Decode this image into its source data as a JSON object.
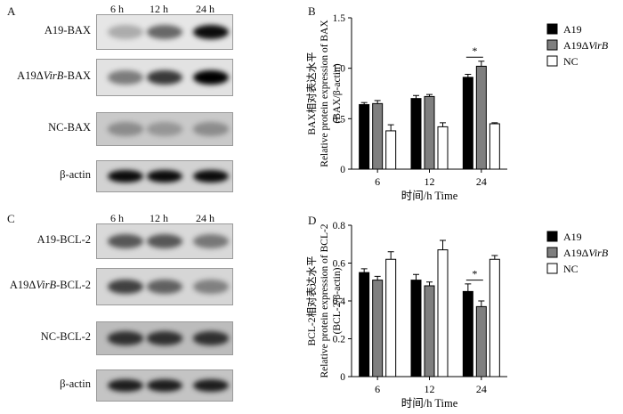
{
  "panels": {
    "A": {
      "letter": "A",
      "time_labels": [
        "6 h",
        "12 h",
        "24 h"
      ],
      "rows": [
        {
          "prefix": "A19-BAX",
          "italic": "",
          "suffix": "",
          "intensity": [
            0.25,
            0.55,
            0.95
          ],
          "bg": "#e6e6e6"
        },
        {
          "prefix": "A19Δ",
          "italic": "VirB",
          "suffix": "-BAX",
          "intensity": [
            0.45,
            0.75,
            1.0
          ],
          "bg": "#e2e2e2"
        },
        {
          "prefix": "NC-BAX",
          "italic": "",
          "suffix": "",
          "intensity": [
            0.3,
            0.25,
            0.3
          ],
          "bg": "#c9c9c9"
        },
        {
          "prefix": "β-actin",
          "italic": "",
          "suffix": "",
          "intensity": [
            0.95,
            0.95,
            0.95
          ],
          "bg": "#d2d2d2"
        }
      ]
    },
    "C": {
      "letter": "C",
      "time_labels": [
        "6 h",
        "12 h",
        "24 h"
      ],
      "rows": [
        {
          "prefix": "A19-BCL-2",
          "italic": "",
          "suffix": "",
          "intensity": [
            0.6,
            0.6,
            0.45
          ],
          "bg": "#d9d9d9"
        },
        {
          "prefix": "A19Δ",
          "italic": "VirB",
          "suffix": "-BCL-2",
          "intensity": [
            0.7,
            0.55,
            0.4
          ],
          "bg": "#d6d6d6"
        },
        {
          "prefix": "NC-BCL-2",
          "italic": "",
          "suffix": "",
          "intensity": [
            0.75,
            0.75,
            0.75
          ],
          "bg": "#bcbcbc"
        },
        {
          "prefix": "β-actin",
          "italic": "",
          "suffix": "",
          "intensity": [
            0.85,
            0.85,
            0.85
          ],
          "bg": "#c4c4c4"
        }
      ]
    },
    "B": {
      "letter": "B"
    },
    "D": {
      "letter": "D"
    }
  },
  "chart_data": [
    {
      "panel": "B",
      "type": "bar",
      "categories": [
        "6",
        "12",
        "24"
      ],
      "xlabel": "时间/h  Time",
      "ylabel_lines": [
        "BAX相对表达水平",
        "Relative protein expression of BAX",
        "(BAX/β-actin)"
      ],
      "ylim": [
        0,
        1.5
      ],
      "yticks": [
        "0",
        "0.5",
        "1.0",
        "1.5"
      ],
      "grid": false,
      "legend_position": "right",
      "series": [
        {
          "name": "A19",
          "values": [
            0.64,
            0.7,
            0.91
          ],
          "errors": [
            0.02,
            0.03,
            0.03
          ],
          "color": "#000000"
        },
        {
          "name": "A19ΔVirB",
          "values": [
            0.65,
            0.72,
            1.02
          ],
          "errors": [
            0.03,
            0.02,
            0.05
          ],
          "color": "#7f7f7f"
        },
        {
          "name": "NC",
          "values": [
            0.38,
            0.42,
            0.45
          ],
          "errors": [
            0.06,
            0.04,
            0.01
          ],
          "color": "#ffffff"
        }
      ],
      "significance": [
        {
          "category": "24",
          "label": "*",
          "y": 1.11
        }
      ]
    },
    {
      "panel": "D",
      "type": "bar",
      "categories": [
        "6",
        "12",
        "24"
      ],
      "xlabel": "时间/h  Time",
      "ylabel_lines": [
        "BCL-2相对表达水平",
        "Relative protein expression of BCL-2",
        "(BCL-2/β-actin)"
      ],
      "ylim": [
        0,
        0.8
      ],
      "yticks": [
        "0",
        "0.2",
        "0.4",
        "0.6",
        "0.8"
      ],
      "grid": false,
      "legend_position": "right",
      "series": [
        {
          "name": "A19",
          "values": [
            0.55,
            0.51,
            0.45
          ],
          "errors": [
            0.02,
            0.03,
            0.04
          ],
          "color": "#000000"
        },
        {
          "name": "A19ΔVirB",
          "values": [
            0.51,
            0.48,
            0.37
          ],
          "errors": [
            0.02,
            0.02,
            0.03
          ],
          "color": "#7f7f7f"
        },
        {
          "name": "NC",
          "values": [
            0.62,
            0.67,
            0.62
          ],
          "errors": [
            0.04,
            0.05,
            0.02
          ],
          "color": "#ffffff"
        }
      ],
      "significance": [
        {
          "category": "24",
          "label": "*",
          "y": 0.51
        }
      ]
    }
  ]
}
